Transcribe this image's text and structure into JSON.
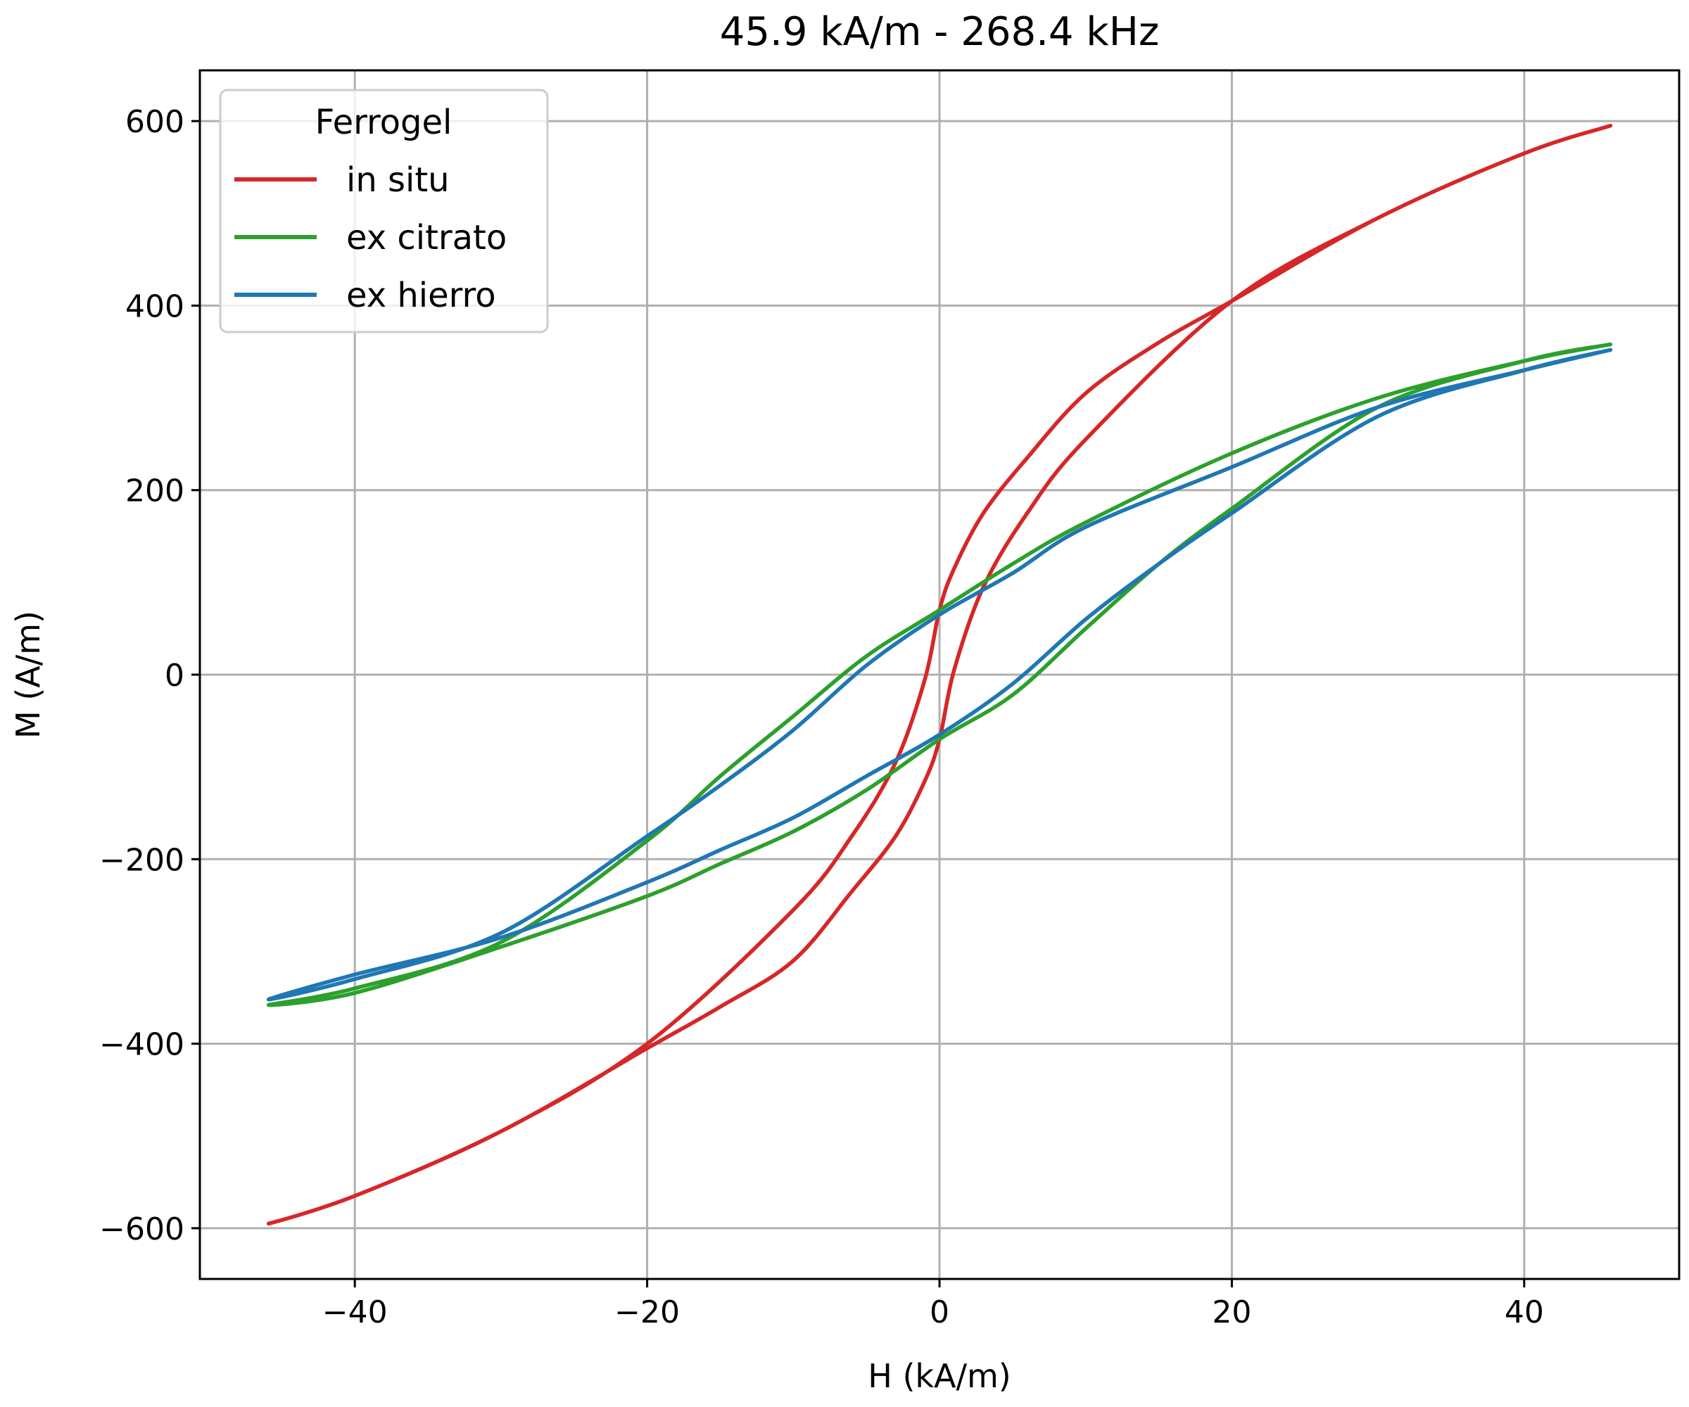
{
  "chart_data": {
    "type": "line",
    "title": "45.9 kA/m - 268.4 kHz",
    "xlabel": "H (kA/m)",
    "ylabel": "M (A/m)",
    "xlim": [
      -50.6,
      50.6
    ],
    "ylim": [
      -655,
      655
    ],
    "xticks": [
      -40,
      -20,
      0,
      20,
      40
    ],
    "yticks": [
      -600,
      -400,
      -200,
      0,
      200,
      400,
      600
    ],
    "xtick_labels": [
      "−40",
      "−20",
      "0",
      "20",
      "40"
    ],
    "ytick_labels": [
      "−600",
      "−400",
      "−200",
      "0",
      "200",
      "400",
      "600"
    ],
    "grid": true,
    "legend": {
      "title": "Ferrogel",
      "placement": "top-left"
    },
    "series": [
      {
        "name": "in situ",
        "color": "#d62728",
        "x": [
          45.9,
          40,
          30,
          20,
          10,
          6,
          3,
          1,
          0,
          -1,
          -3,
          -6,
          -10,
          -15,
          -20,
          -30,
          -40,
          -45.9,
          -40,
          -30,
          -20,
          -10,
          -6,
          -3,
          -1,
          0,
          1,
          3,
          6,
          10,
          15,
          20,
          30,
          40,
          45.9
        ],
        "y": [
          595,
          565,
          495,
          405,
          255,
          175,
          95,
          5,
          -70,
          -115,
          -175,
          -235,
          -310,
          -360,
          -405,
          -495,
          -565,
          -595,
          -565,
          -495,
          -400,
          -255,
          -175,
          -95,
          -5,
          70,
          115,
          175,
          235,
          305,
          360,
          405,
          495,
          565,
          595
        ]
      },
      {
        "name": "ex citrato",
        "color": "#2ca02c",
        "x": [
          45.9,
          40,
          30,
          20,
          10,
          5,
          0,
          -5,
          -10,
          -15,
          -20,
          -30,
          -40,
          -45.9,
          -40,
          -30,
          -20,
          -15,
          -10,
          -5,
          0,
          5,
          10,
          15,
          20,
          30,
          40,
          45.9
        ],
        "y": [
          358,
          340,
          300,
          240,
          165,
          120,
          70,
          20,
          -45,
          -110,
          -180,
          -290,
          -340,
          -358,
          -345,
          -295,
          -240,
          -205,
          -170,
          -125,
          -70,
          -22,
          50,
          120,
          180,
          290,
          340,
          358
        ]
      },
      {
        "name": "ex hierro",
        "color": "#1f77b4",
        "x": [
          45.9,
          40,
          30,
          20,
          10,
          5,
          0,
          -5,
          -10,
          -15,
          -20,
          -30,
          -40,
          -45.9,
          -40,
          -30,
          -20,
          -15,
          -10,
          -5,
          0,
          5,
          10,
          15,
          20,
          30,
          40,
          45.9
        ],
        "y": [
          352,
          330,
          290,
          225,
          160,
          110,
          65,
          10,
          -60,
          -120,
          -175,
          -280,
          -330,
          -352,
          -325,
          -285,
          -225,
          -190,
          -155,
          -110,
          -65,
          -10,
          60,
          120,
          175,
          280,
          330,
          352
        ]
      }
    ]
  }
}
